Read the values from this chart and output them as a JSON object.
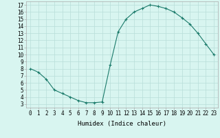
{
  "x": [
    0,
    1,
    2,
    3,
    4,
    5,
    6,
    7,
    8,
    9,
    10,
    11,
    12,
    13,
    14,
    15,
    16,
    17,
    18,
    19,
    20,
    21,
    22,
    23
  ],
  "y": [
    8.0,
    7.5,
    6.5,
    5.0,
    4.5,
    4.0,
    3.5,
    3.2,
    3.2,
    3.3,
    8.5,
    13.2,
    15.0,
    16.0,
    16.5,
    17.0,
    16.8,
    16.5,
    16.0,
    15.2,
    14.3,
    13.0,
    11.5,
    10.0
  ],
  "line_color": "#1a7a6a",
  "marker": "+",
  "marker_size": 3,
  "marker_linewidth": 0.8,
  "line_width": 0.8,
  "bg_color": "#d8f5f0",
  "grid_color": "#b8ddd8",
  "xlabel": "Humidex (Indice chaleur)",
  "xlim": [
    -0.5,
    23.5
  ],
  "ylim": [
    2.5,
    17.5
  ],
  "yticks": [
    3,
    4,
    5,
    6,
    7,
    8,
    9,
    10,
    11,
    12,
    13,
    14,
    15,
    16,
    17
  ],
  "xticks": [
    0,
    1,
    2,
    3,
    4,
    5,
    6,
    7,
    8,
    9,
    10,
    11,
    12,
    13,
    14,
    15,
    16,
    17,
    18,
    19,
    20,
    21,
    22,
    23
  ],
  "label_fontsize": 6.5,
  "tick_fontsize": 5.5
}
